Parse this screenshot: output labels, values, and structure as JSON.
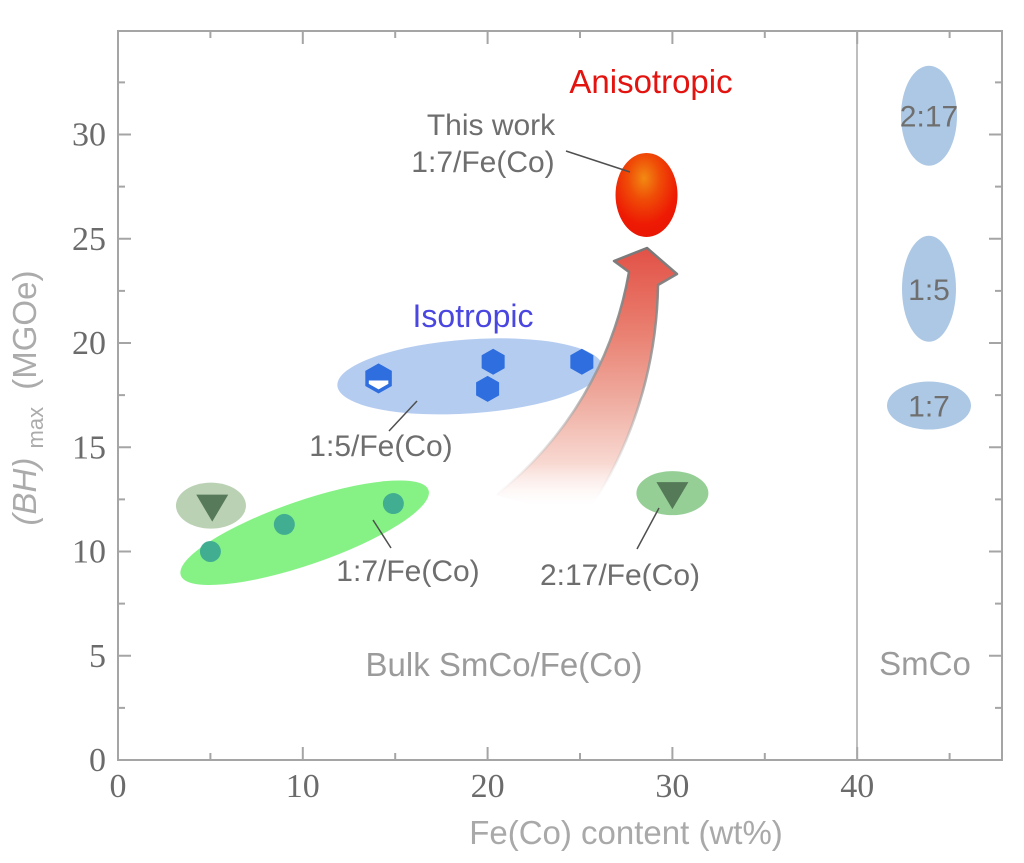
{
  "figure": {
    "annotations": {
      "anisotropic": "Anisotropic",
      "this_work_line1": "This work",
      "this_work_line2": "1:7/Fe(Co)",
      "isotropic": "Isotropic",
      "label_15_feco": "1:5/Fe(Co)",
      "label_17_feco": "1:7/Fe(Co)",
      "label_217_feco": "2:17/Fe(Co)",
      "bulk_region": "Bulk SmCo/Fe(Co)",
      "smco_region": "SmCo"
    },
    "axes": {
      "x_title": "Fe(Co) content (wt%)",
      "y_title_italic": "(BH)",
      "y_title_sub": "max",
      "y_title_rest": "(MGOe)"
    },
    "colors": {
      "anisotropic_text": "#e3130f",
      "isotropic_text": "#4a46e0",
      "annotation_gray": "#6e6e6e",
      "region_label_gray": "#9b9b9b",
      "axis_gray": "#a5a5a5",
      "tick_label_gray": "#6b6b6b",
      "hexagon_blue": "#2e6edf",
      "circle_teal": "#41ae92",
      "triangle_green": "#4d7050",
      "red_marker": "#ee1a04",
      "blue_region": "#adc6f0",
      "bright_green_region": "#7cf17c",
      "sage_region": "#b6cfaf",
      "mid_green_region": "#8fcc90",
      "smco_ellipse": "#a9c5e3"
    }
  },
  "chart_data": {
    "type": "scatter",
    "title": "",
    "xlabel": "Fe(Co) content (wt%)",
    "ylabel": "(BH)max (MGOe)",
    "xlim": [
      0,
      47.8
    ],
    "ylim": [
      0,
      35
    ],
    "grid": false,
    "x_ticks": [
      0,
      10,
      20,
      30,
      40
    ],
    "x_minor_ticks": [
      5,
      15,
      25,
      35,
      45
    ],
    "y_ticks": [
      0,
      5,
      10,
      15,
      20,
      25,
      30
    ],
    "y_minor_ticks": [
      2.5,
      7.5,
      12.5,
      17.5,
      22.5,
      27.5,
      32.5
    ],
    "divider_x": 40,
    "series": [
      {
        "name": "1:5/Fe(Co) isotropic",
        "marker": "hexagon",
        "color": "#2e6edf",
        "points": [
          {
            "x": 14.1,
            "y": 18.3,
            "style": "half"
          },
          {
            "x": 20.3,
            "y": 19.1
          },
          {
            "x": 20.0,
            "y": 17.8
          },
          {
            "x": 25.1,
            "y": 19.1
          }
        ]
      },
      {
        "name": "1:7/Fe(Co) isotropic bulk",
        "marker": "circle",
        "color": "#41ae92",
        "points": [
          {
            "x": 5.0,
            "y": 10.0
          },
          {
            "x": 9.0,
            "y": 11.3
          },
          {
            "x": 14.9,
            "y": 12.3
          }
        ]
      },
      {
        "name": "2:17/Fe(Co) bulk",
        "marker": "triangle-down",
        "color": "#4d7050",
        "points": [
          {
            "x": 5.1,
            "y": 12.2
          },
          {
            "x": 30.0,
            "y": 12.8
          }
        ]
      },
      {
        "name": "This work 1:7/Fe(Co) anisotropic",
        "marker": "big-ellipse",
        "color": "#ee1a04",
        "points": [
          {
            "x": 28.6,
            "y": 27.1
          }
        ]
      }
    ],
    "regions": [
      {
        "name": "isotropic-1-5-region",
        "cx": 19.05,
        "cy": 18.4,
        "rx": 133,
        "ry": 37,
        "rot": -4,
        "fill": "#adc6f0",
        "opacity": 0.9
      },
      {
        "name": "bulk-1-7-region",
        "cx": 10.1,
        "cy": 10.9,
        "rx": 131,
        "ry": 32,
        "rot": -19,
        "fill": "#7cf17c",
        "opacity": 0.92
      },
      {
        "name": "bulk-2-17-left-region",
        "cx": 5.03,
        "cy": 12.2,
        "rx": 35,
        "ry": 23,
        "rot": 0,
        "fill": "#b6cfaf",
        "opacity": 0.95
      },
      {
        "name": "bulk-2-17-right-region",
        "cx": 30.0,
        "cy": 12.8,
        "rx": 36,
        "ry": 22,
        "rot": 0,
        "fill": "#8fcc90",
        "opacity": 0.95
      }
    ],
    "smco_reference": [
      {
        "label": "2:17",
        "y": 30.9,
        "rx": 28,
        "ry": 50
      },
      {
        "label": "1:5",
        "y": 22.6,
        "rx": 27,
        "ry": 53
      },
      {
        "label": "1:7",
        "y": 17.0,
        "rx": 42,
        "ry": 24
      }
    ]
  }
}
